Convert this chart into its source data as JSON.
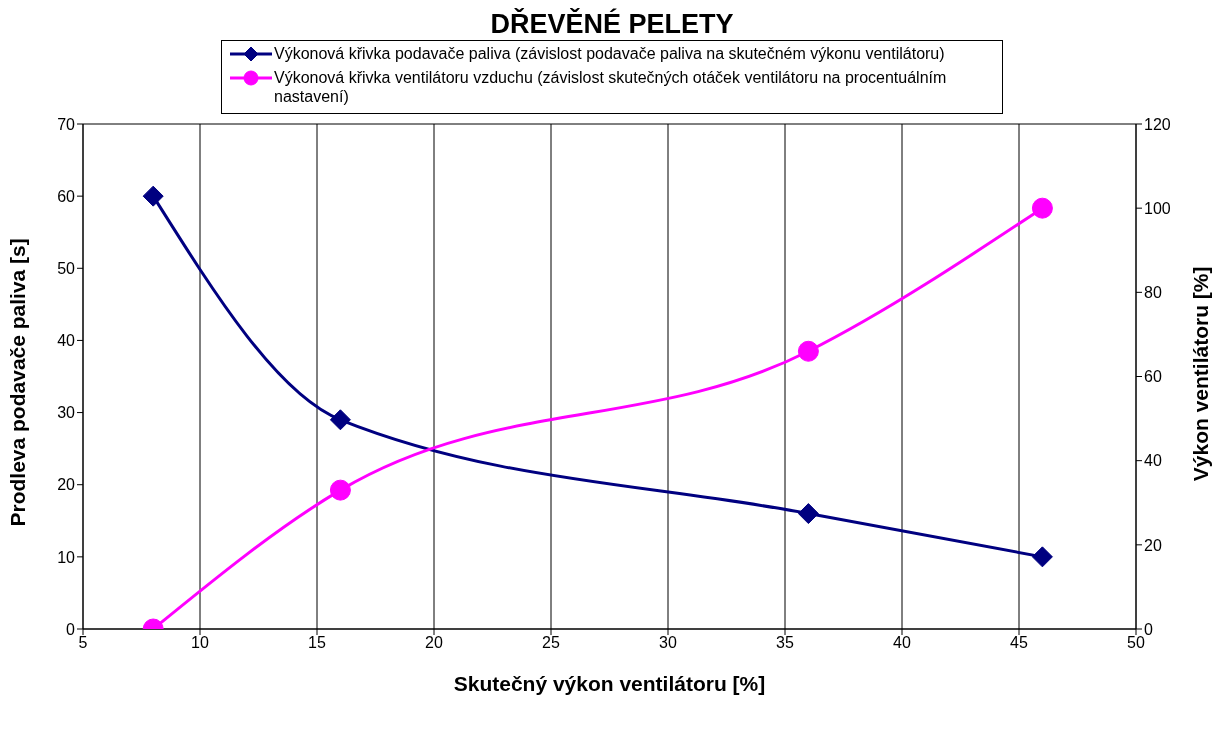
{
  "chart_data": {
    "type": "line",
    "title": "DŘEVĚNÉ PELETY",
    "xlabel": "Skutečný výkon ventilátoru [%]",
    "ylabel": "Prodleva podavače paliva [s]",
    "y2label": "Výkon ventilátoru [%]",
    "x": [
      8,
      16,
      36,
      46
    ],
    "series": [
      {
        "name": "Výkonová křivka podavače paliva (závislost podavače paliva na skutečném výkonu ventilátoru)",
        "color": "#000080",
        "values": [
          60,
          29,
          16,
          10
        ],
        "marker": "diamond"
      },
      {
        "name": "Výkonová křivka ventilátoru vzduchu (závislost skutečných otáček ventilátoru na procentuálním nastavení)",
        "color": "#ff00ff",
        "values": [
          0,
          33,
          66,
          100
        ],
        "marker": "circle",
        "axis": "y2"
      }
    ],
    "xlim": [
      5,
      50
    ],
    "xticks": [
      5,
      10,
      15,
      20,
      25,
      30,
      35,
      40,
      45,
      50
    ],
    "ylim": [
      0,
      70
    ],
    "yticks": [
      0,
      10,
      20,
      30,
      40,
      50,
      60,
      70
    ],
    "y2lim": [
      0,
      120
    ],
    "y2ticks": [
      0,
      20,
      40,
      60,
      80,
      100,
      120
    ],
    "grid": true,
    "legend": "top",
    "line_style": "solid"
  }
}
